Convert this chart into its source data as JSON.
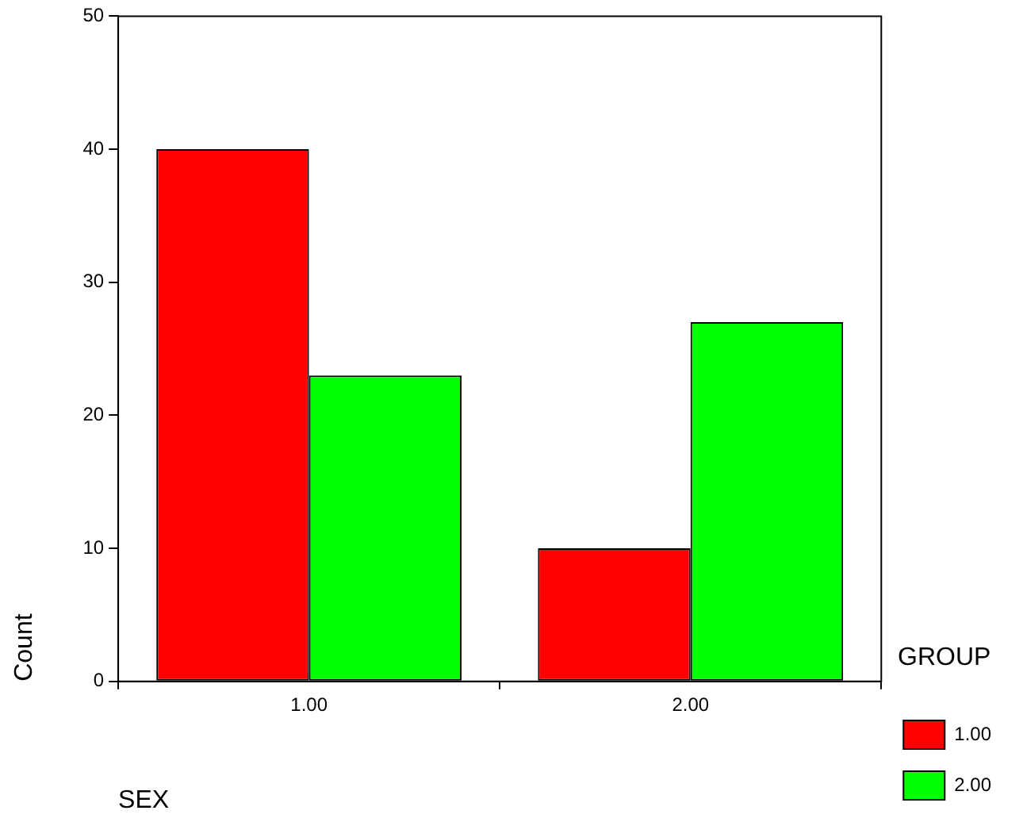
{
  "chart_data": {
    "type": "bar",
    "xlabel": "SEX",
    "ylabel": "Count",
    "legend_title": "GROUP",
    "categories": [
      "1.00",
      "2.00"
    ],
    "series": [
      {
        "name": "1.00",
        "color": "#ff0000",
        "values": [
          40,
          10
        ]
      },
      {
        "name": "2.00",
        "color": "#00ff00",
        "values": [
          23,
          27
        ]
      }
    ],
    "ylim": [
      0,
      50
    ],
    "yticks": [
      0,
      10,
      20,
      30,
      40,
      50
    ],
    "grid": false,
    "legend": "right"
  }
}
